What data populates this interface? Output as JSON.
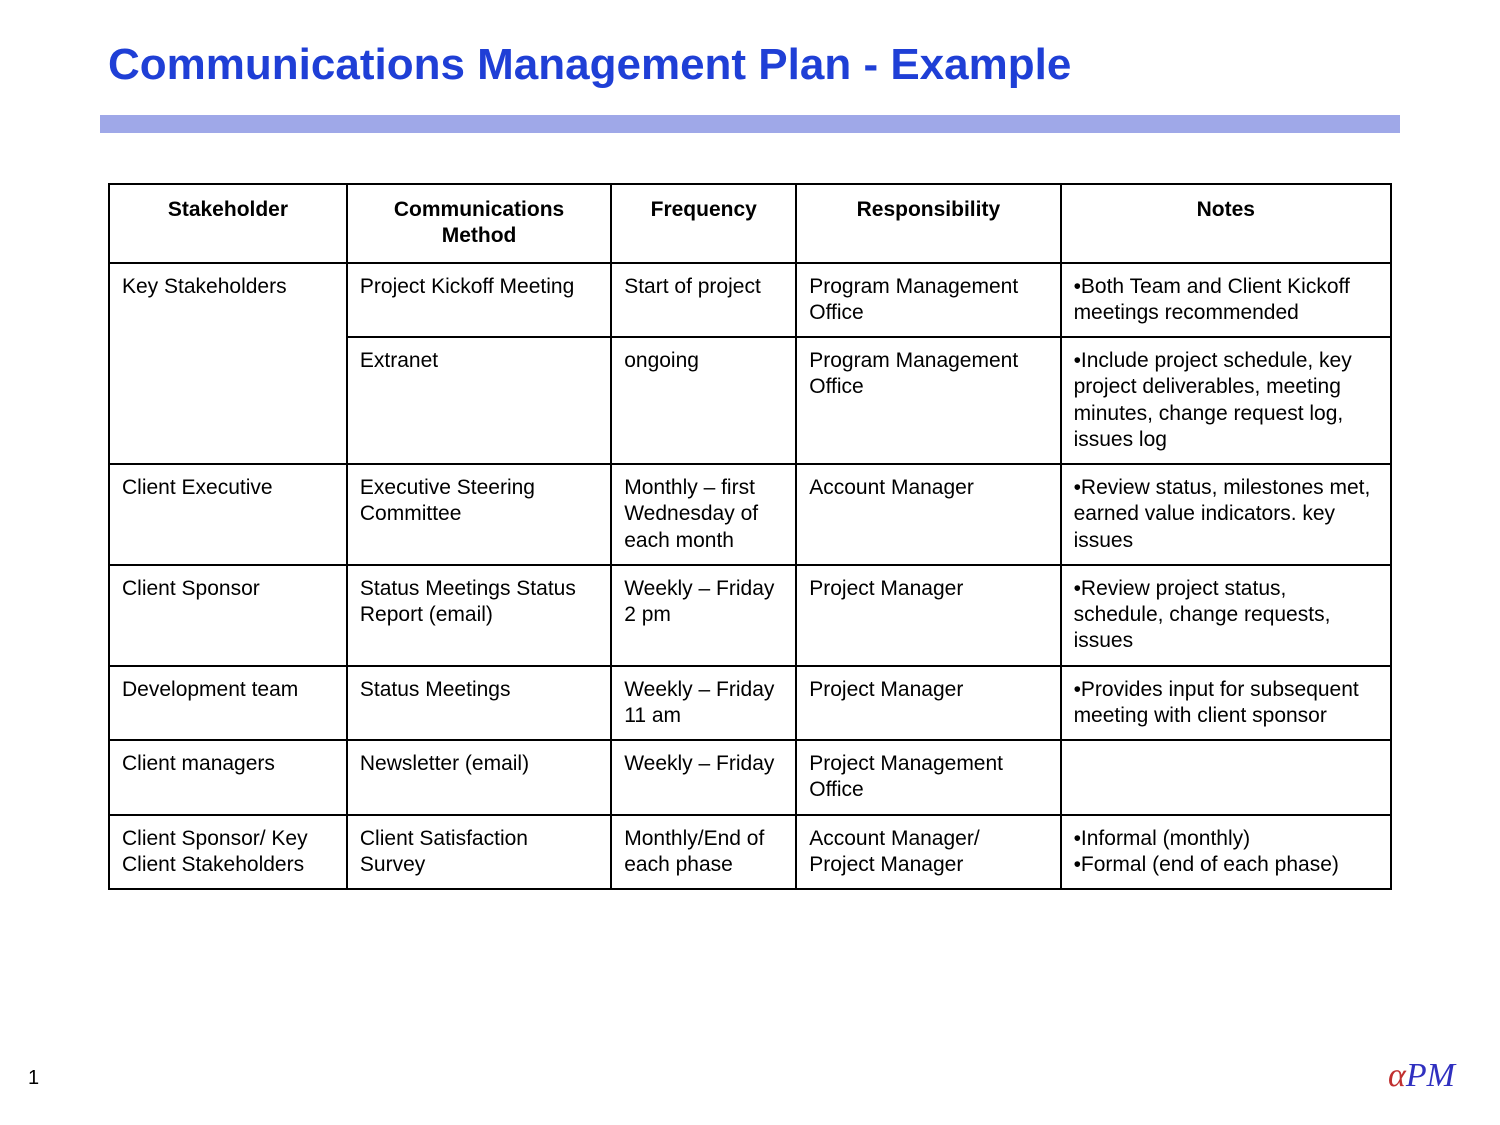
{
  "title": "Communications Management Plan - Example",
  "page_number": "1",
  "logo": {
    "alpha": "α",
    "pm": "PM"
  },
  "colors": {
    "title_color": "#1f3fd6",
    "divider_color": "#9fa8e8",
    "border_color": "#000000",
    "background_color": "#ffffff",
    "logo_alpha_color": "#c03030",
    "logo_pm_color": "#3030c0"
  },
  "table": {
    "type": "table",
    "columns": [
      "Stakeholder",
      "Communications Method",
      "Frequency",
      "Responsibility",
      "Notes"
    ],
    "rows": [
      {
        "stakeholder": "Key Stakeholders",
        "method": "Project Kickoff Meeting",
        "frequency": "Start of project",
        "responsibility": "Program Management Office",
        "notes": "•Both Team and Client Kickoff meetings recommended",
        "rowspan_stakeholder": 2
      },
      {
        "stakeholder": "",
        "method": "Extranet",
        "frequency": "ongoing",
        "responsibility": "Program Management Office",
        "notes": "•Include project schedule, key project  deliverables, meeting minutes, change request log, issues log"
      },
      {
        "stakeholder": "Client Executive",
        "method": "Executive Steering Committee",
        "frequency": "Monthly – first Wednesday of each month",
        "responsibility": "Account Manager",
        "notes": "•Review status, milestones met, earned value indicators. key issues"
      },
      {
        "stakeholder": "Client Sponsor",
        "method": "Status Meetings Status Report (email)",
        "frequency": "Weekly – Friday  2 pm",
        "responsibility": "Project Manager",
        "notes": "•Review project status, schedule, change requests, issues"
      },
      {
        "stakeholder": "Development team",
        "method": "Status Meetings",
        "frequency": "Weekly – Friday 11 am",
        "responsibility": "Project Manager",
        "notes": "•Provides input for subsequent meeting with client sponsor"
      },
      {
        "stakeholder": "Client managers",
        "method": "Newsletter (email)",
        "frequency": "Weekly – Friday",
        "responsibility": "Project Management Office",
        "notes": ""
      },
      {
        "stakeholder": "Client Sponsor/ Key Client Stakeholders",
        "method": "Client Satisfaction Survey",
        "frequency": "Monthly/End of each phase",
        "responsibility": "Account Manager/ Project Manager",
        "notes": "•Informal (monthly)\n•Formal (end of each phase)"
      }
    ]
  }
}
